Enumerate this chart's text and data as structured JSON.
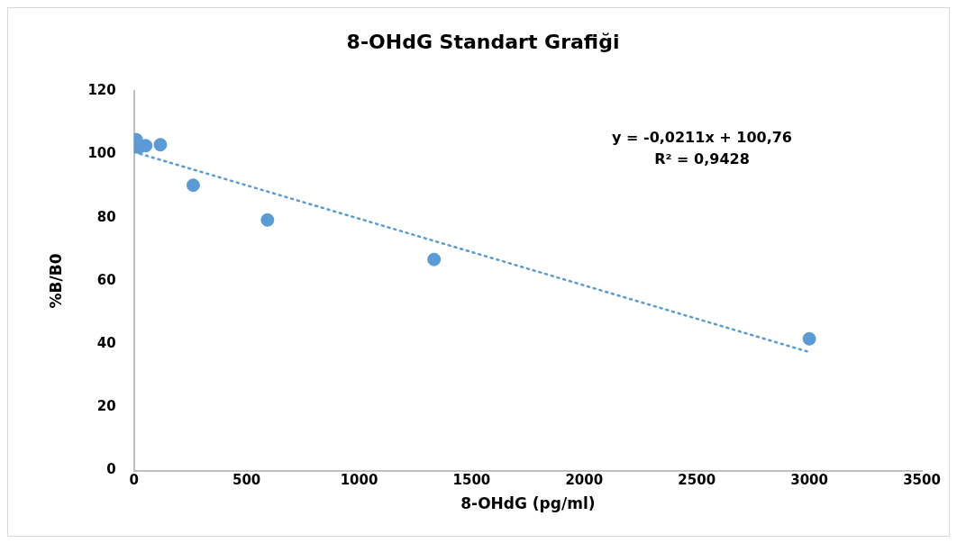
{
  "chart_data": {
    "type": "scatter",
    "title": "8-OHdG Standart Grafiği",
    "xlabel": "8-OHdG (pg/ml)",
    "ylabel": "%B/B0",
    "xlim": [
      0,
      3500
    ],
    "xticks": [
      0,
      500,
      1000,
      1500,
      2000,
      2500,
      3000,
      3500
    ],
    "ylim": [
      0,
      120
    ],
    "yticks": [
      0,
      20,
      40,
      60,
      80,
      100,
      120
    ],
    "grid": false,
    "legend": false,
    "marker": "circle",
    "series": [
      {
        "type": "scatter",
        "color": "#5b9bd5",
        "x": [
          10,
          23,
          52,
          117,
          263,
          593,
          1333,
          3000
        ],
        "values": [
          104.7,
          102.3,
          102.8,
          103.1,
          90.3,
          79.3,
          66.8,
          41.7
        ]
      },
      {
        "type": "line",
        "color": "#5b9bd5",
        "line_style": "dotted",
        "marker": "none",
        "x": [
          0,
          3000
        ],
        "values": [
          100.8,
          37.5
        ]
      }
    ],
    "annotations": [
      "y = -0,0211x + 100,76",
      "R² = 0,9428"
    ]
  }
}
